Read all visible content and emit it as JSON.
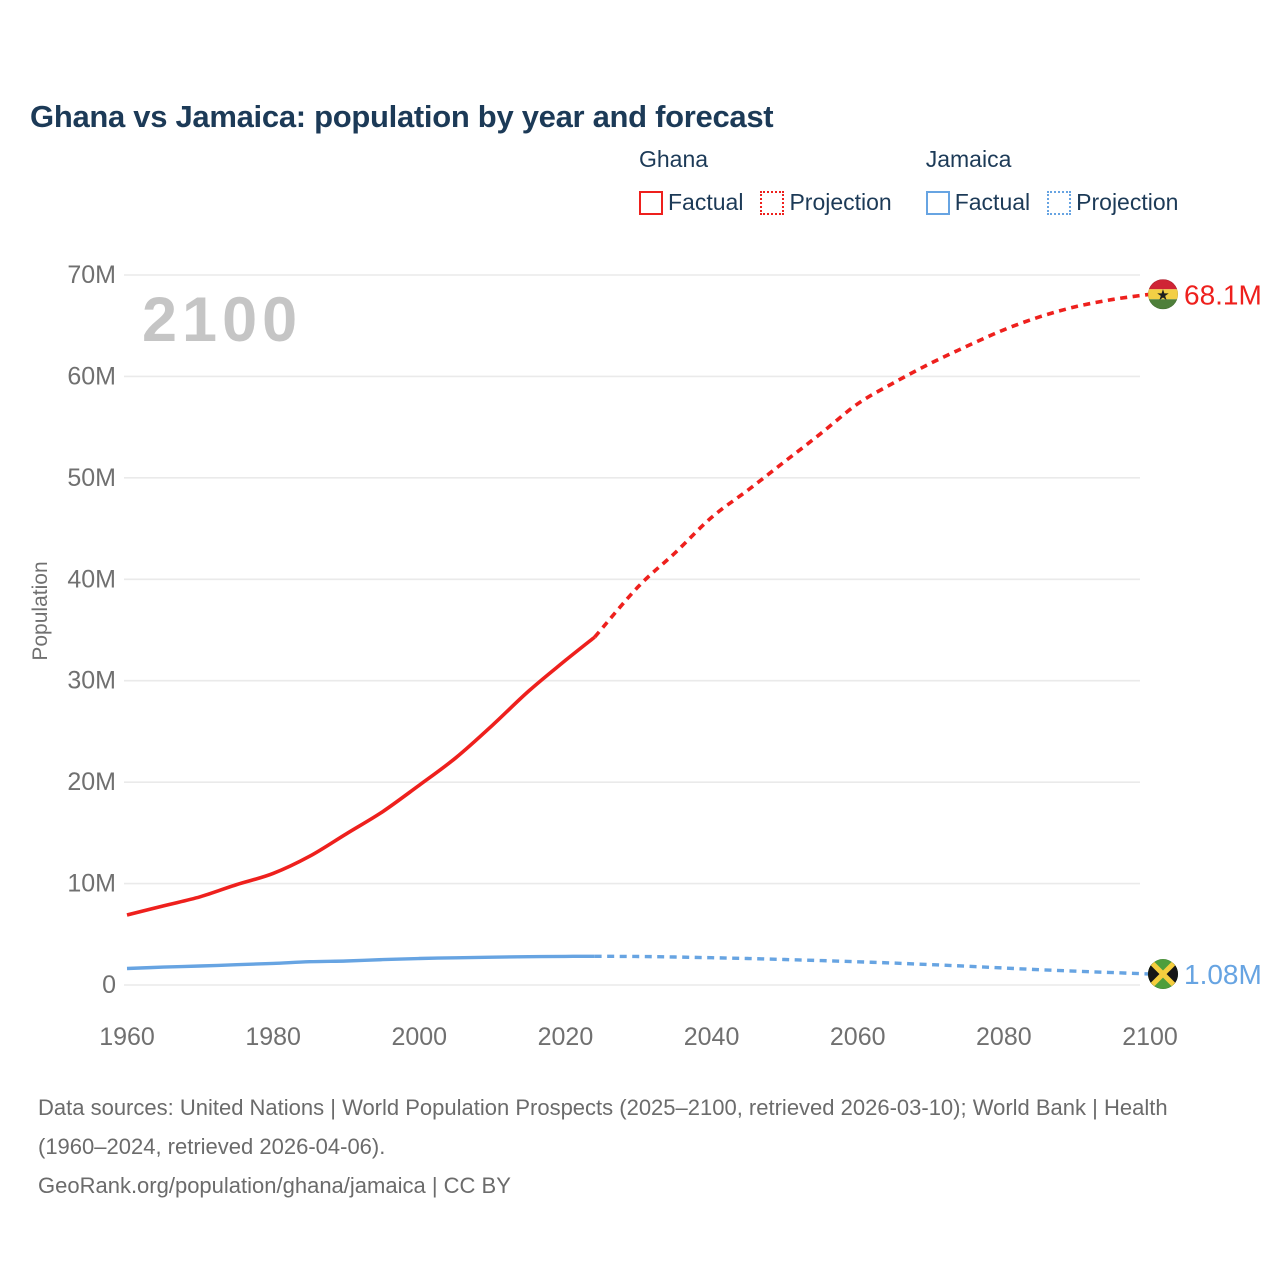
{
  "header": {
    "title": "Ghana vs Jamaica: population by year and forecast"
  },
  "legend": {
    "groups": [
      {
        "name": "Ghana",
        "color": "#ee201d",
        "items": [
          {
            "label": "Factual",
            "style": "solid"
          },
          {
            "label": "Projection",
            "style": "dotted"
          }
        ]
      },
      {
        "name": "Jamaica",
        "color": "#67a4e2",
        "items": [
          {
            "label": "Factual",
            "style": "solid"
          },
          {
            "label": "Projection",
            "style": "dotted"
          }
        ]
      }
    ]
  },
  "watermark": "2100",
  "chart_data": {
    "type": "line",
    "title": "Ghana vs Jamaica: population by year and forecast",
    "xlabel": "",
    "ylabel": "Population",
    "unit": "millions of people",
    "xlim": [
      1960,
      2100
    ],
    "ylim": [
      0,
      70
    ],
    "x_ticks": [
      1960,
      1980,
      2000,
      2020,
      2040,
      2060,
      2080,
      2100
    ],
    "y_ticks": [
      "0",
      "10M",
      "20M",
      "30M",
      "40M",
      "50M",
      "60M",
      "70M"
    ],
    "grid": "horizontal",
    "legend_position": "top-right",
    "colors": {
      "ghana": "#ee201d",
      "jamaica": "#67a4e2",
      "grid": "#eaeaea",
      "axis_text": "#707070",
      "watermark": "#c5c5c5"
    },
    "series": [
      {
        "name": "Ghana Factual",
        "country": "Ghana",
        "color": "#ee201d",
        "style": "solid",
        "width": 3.6,
        "points": [
          [
            1960,
            6.9
          ],
          [
            1965,
            7.8
          ],
          [
            1970,
            8.7
          ],
          [
            1975,
            9.9
          ],
          [
            1980,
            11.0
          ],
          [
            1985,
            12.7
          ],
          [
            1990,
            14.9
          ],
          [
            1995,
            17.1
          ],
          [
            2000,
            19.7
          ],
          [
            2005,
            22.4
          ],
          [
            2010,
            25.6
          ],
          [
            2015,
            29.0
          ],
          [
            2020,
            32.0
          ],
          [
            2024,
            34.3
          ]
        ]
      },
      {
        "name": "Ghana Projection",
        "country": "Ghana",
        "color": "#ee201d",
        "style": "dashed",
        "width": 3.6,
        "end_label": "68.1M",
        "end_marker": "ghana-flag",
        "points": [
          [
            2024,
            34.3
          ],
          [
            2030,
            39.3
          ],
          [
            2035,
            42.6
          ],
          [
            2040,
            46.1
          ],
          [
            2045,
            48.8
          ],
          [
            2050,
            51.6
          ],
          [
            2055,
            54.4
          ],
          [
            2060,
            57.3
          ],
          [
            2065,
            59.4
          ],
          [
            2070,
            61.3
          ],
          [
            2075,
            63.0
          ],
          [
            2080,
            64.6
          ],
          [
            2085,
            65.9
          ],
          [
            2090,
            66.9
          ],
          [
            2095,
            67.6
          ],
          [
            2100,
            68.1
          ]
        ]
      },
      {
        "name": "Jamaica Factual",
        "country": "Jamaica",
        "color": "#67a4e2",
        "style": "solid",
        "width": 3.4,
        "points": [
          [
            1960,
            1.63
          ],
          [
            1965,
            1.76
          ],
          [
            1970,
            1.87
          ],
          [
            1975,
            2.0
          ],
          [
            1980,
            2.13
          ],
          [
            1985,
            2.3
          ],
          [
            1990,
            2.37
          ],
          [
            1995,
            2.5
          ],
          [
            2000,
            2.61
          ],
          [
            2005,
            2.68
          ],
          [
            2010,
            2.74
          ],
          [
            2015,
            2.79
          ],
          [
            2020,
            2.82
          ],
          [
            2024,
            2.83
          ]
        ]
      },
      {
        "name": "Jamaica Projection",
        "country": "Jamaica",
        "color": "#67a4e2",
        "style": "dashed",
        "width": 3.4,
        "end_label": "1.08M",
        "end_marker": "jamaica-flag",
        "points": [
          [
            2024,
            2.83
          ],
          [
            2030,
            2.81
          ],
          [
            2035,
            2.76
          ],
          [
            2040,
            2.69
          ],
          [
            2045,
            2.61
          ],
          [
            2050,
            2.51
          ],
          [
            2055,
            2.41
          ],
          [
            2060,
            2.29
          ],
          [
            2065,
            2.16
          ],
          [
            2070,
            2.01
          ],
          [
            2075,
            1.85
          ],
          [
            2080,
            1.68
          ],
          [
            2085,
            1.5
          ],
          [
            2090,
            1.36
          ],
          [
            2095,
            1.22
          ],
          [
            2100,
            1.08
          ]
        ]
      }
    ],
    "end_labels": [
      {
        "series": "Ghana Projection",
        "text": "68.1M",
        "color": "#ee201d"
      },
      {
        "series": "Jamaica Projection",
        "text": "1.08M",
        "color": "#67a4e2"
      }
    ]
  },
  "footer": {
    "sources_text": "Data sources: United Nations | World Population Prospects (2025–2100, retrieved 2026-03-10); World Bank | Health (1960–2024, retrieved 2026-04-06).",
    "attribution_text": "GeoRank.org/population/ghana/jamaica | CC BY"
  }
}
